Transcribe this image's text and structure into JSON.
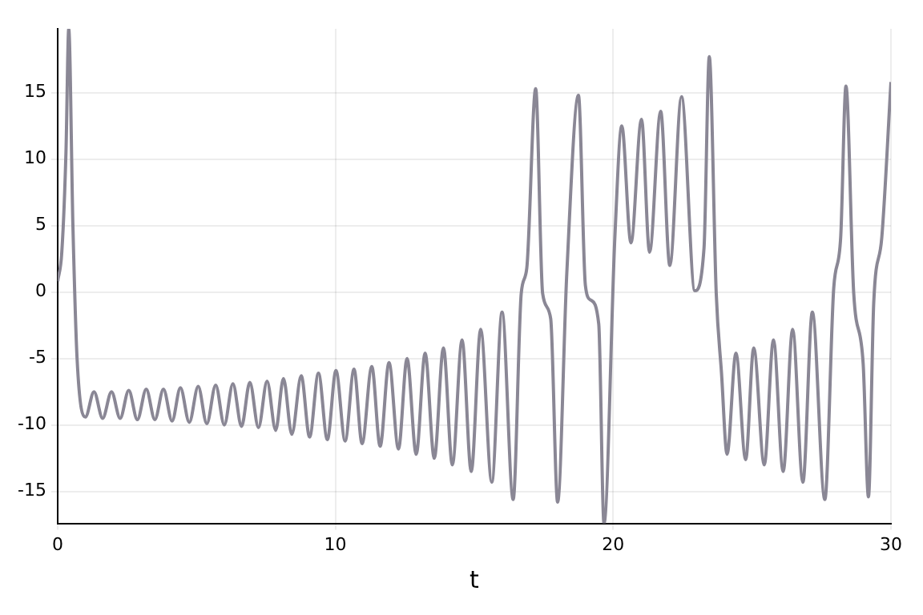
{
  "chart_data": {
    "type": "line",
    "xlabel": "t",
    "x": [
      0,
      0.15,
      0.3,
      0.4,
      0.55,
      0.7,
      1.0,
      1.31,
      1.62,
      1.94,
      2.25,
      2.56,
      2.87,
      3.19,
      3.5,
      3.81,
      4.12,
      4.42,
      4.74,
      5.06,
      5.37,
      5.69,
      6.0,
      6.31,
      6.62,
      6.92,
      7.23,
      7.54,
      7.85,
      8.13,
      8.43,
      8.77,
      9.07,
      9.39,
      9.71,
      10.02,
      10.35,
      10.67,
      10.96,
      11.31,
      11.61,
      11.93,
      12.27,
      12.58,
      12.91,
      13.23,
      13.56,
      13.89,
      14.21,
      14.56,
      14.89,
      15.23,
      15.63,
      16.0,
      16.4,
      16.69,
      16.89,
      17.21,
      17.46,
      17.75,
      18.0,
      18.33,
      18.75,
      19.0,
      19.19,
      19.48,
      19.67,
      20.06,
      20.31,
      20.64,
      21.02,
      21.31,
      21.71,
      22.04,
      22.46,
      22.94,
      23.27,
      23.46,
      23.71,
      23.9,
      24.1,
      24.42,
      24.77,
      25.06,
      25.44,
      25.77,
      26.12,
      26.46,
      26.83,
      27.17,
      27.62,
      27.94,
      28.19,
      28.38,
      28.66,
      29.0,
      29.19,
      29.38,
      29.67,
      30
    ],
    "series": [
      {
        "color": "#8a8795",
        "values": [
          0.8,
          3,
          10.5,
          19.8,
          5,
          -5,
          -9.4,
          -7.5,
          -9.5,
          -7.5,
          -9.5,
          -7.4,
          -9.6,
          -7.3,
          -9.6,
          -7.3,
          -9.7,
          -7.2,
          -9.8,
          -7.1,
          -9.9,
          -7.0,
          -10.0,
          -6.9,
          -10.1,
          -6.8,
          -10.2,
          -6.7,
          -10.4,
          -6.5,
          -10.7,
          -6.3,
          -10.9,
          -6.1,
          -11.1,
          -5.9,
          -11.2,
          -5.8,
          -11.4,
          -5.6,
          -11.6,
          -5.3,
          -11.8,
          -5.0,
          -12.2,
          -4.6,
          -12.5,
          -4.2,
          -13.0,
          -3.6,
          -13.5,
          -2.8,
          -14.3,
          -1.5,
          -15.6,
          -0.1,
          1.8,
          15.3,
          -0.1,
          -2.0,
          -15.8,
          1.4,
          14.8,
          0.5,
          -0.6,
          -2.4,
          -17.4,
          4.1,
          12.5,
          3.7,
          13.0,
          3.0,
          13.6,
          2.0,
          14.7,
          0.1,
          3.3,
          17.7,
          -0.1,
          -6.1,
          -12.2,
          -4.6,
          -12.6,
          -4.2,
          -13.0,
          -3.6,
          -13.5,
          -2.8,
          -14.3,
          -1.5,
          -15.6,
          0.3,
          4.1,
          15.5,
          -0.1,
          -5.4,
          -15.4,
          -0.8,
          4.1,
          15.8
        ]
      }
    ],
    "xlim": [
      0,
      30
    ],
    "xticks": [
      0,
      10,
      20,
      30
    ],
    "ylim": [
      -17.4,
      19.8
    ],
    "yticks": [
      -15,
      -10,
      -5,
      0,
      5,
      10,
      15
    ],
    "grid": true,
    "legend": false
  }
}
